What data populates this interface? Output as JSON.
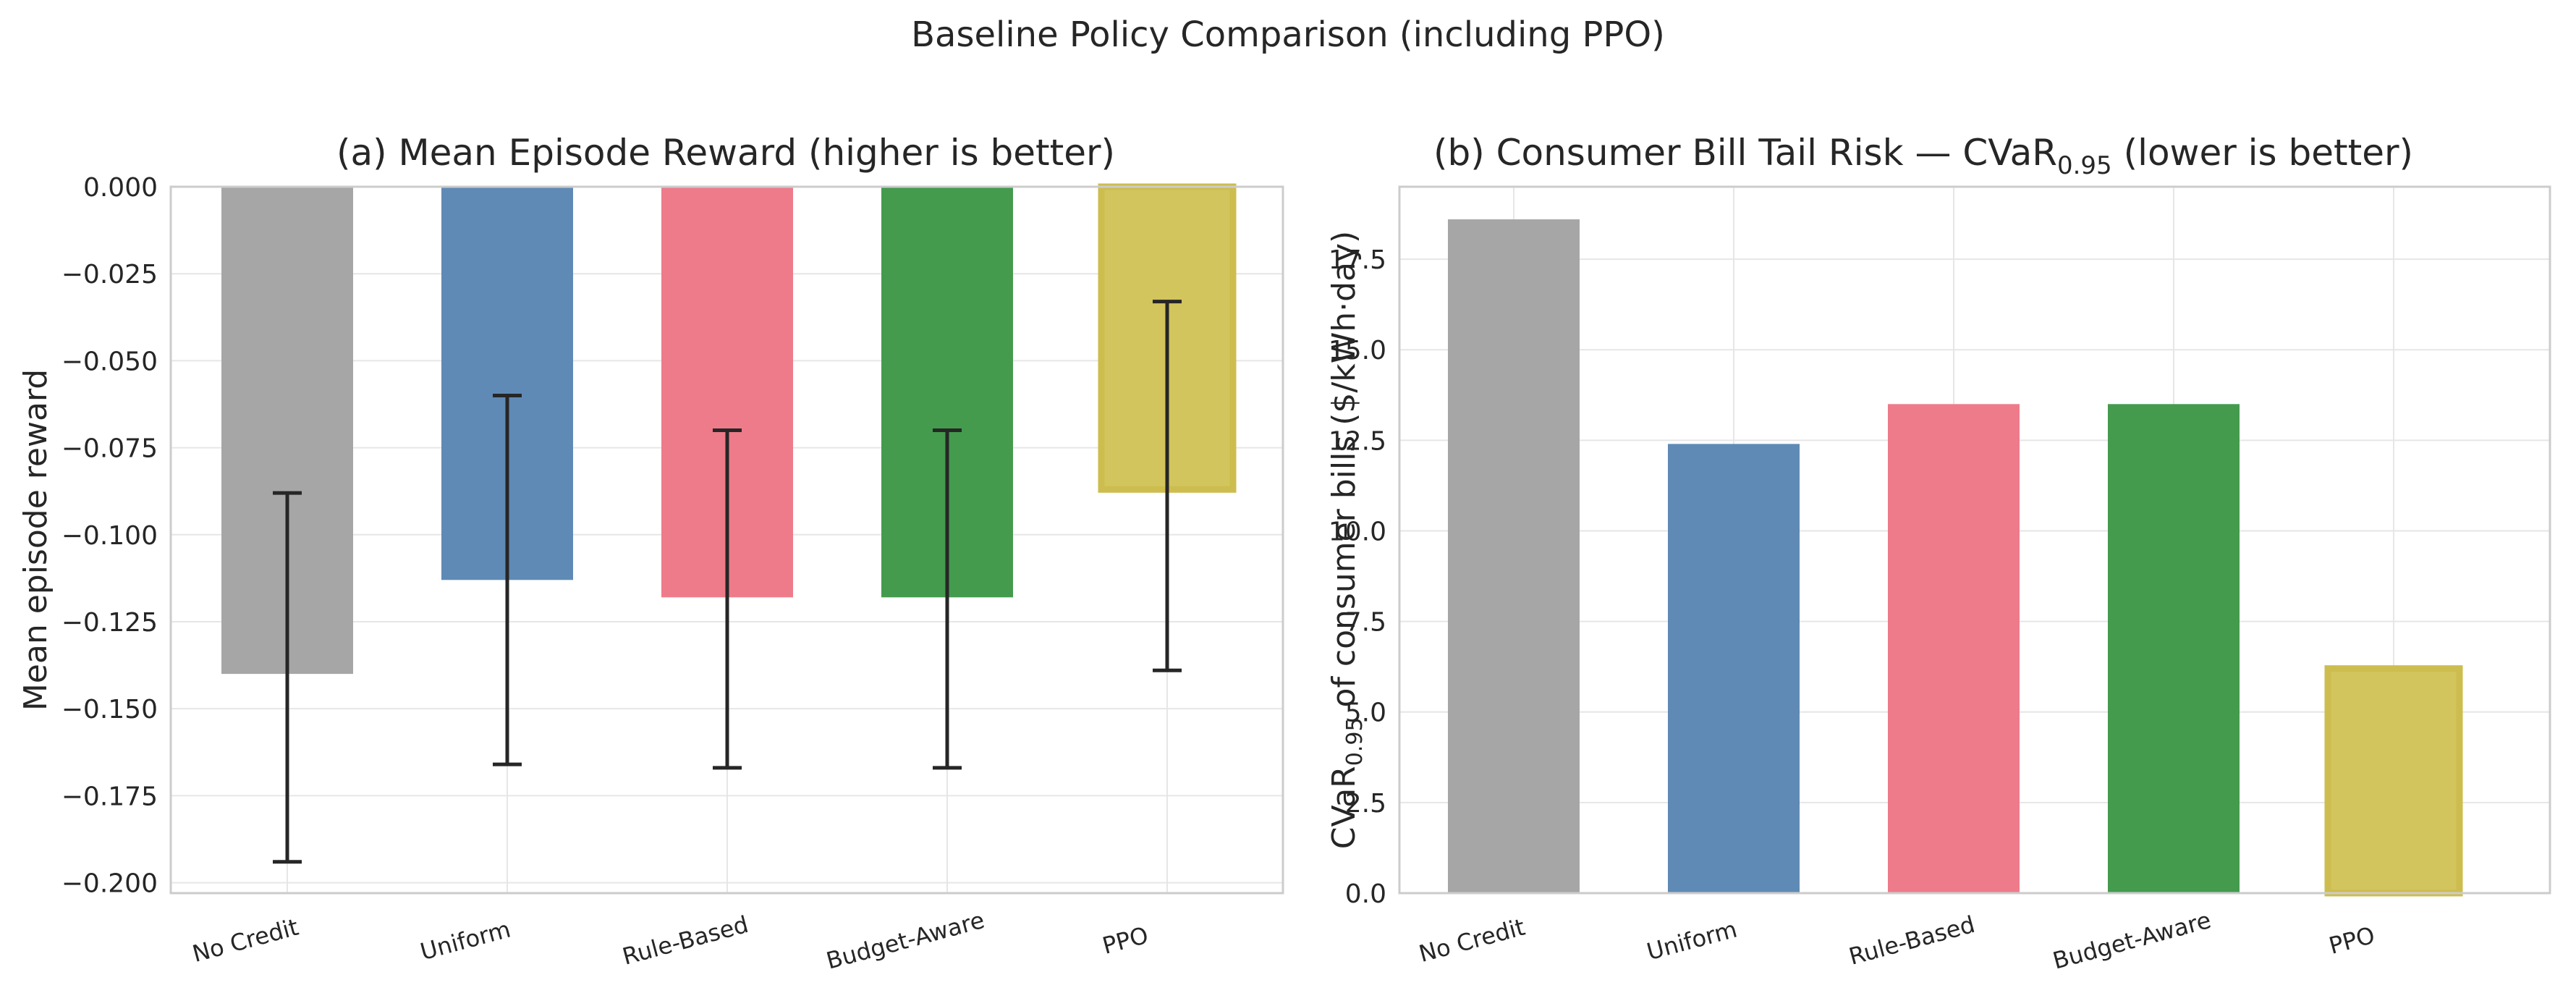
{
  "suptitle": "Baseline Policy Comparison (including PPO)",
  "chart_data": [
    {
      "type": "bar",
      "title": "(a) Mean Episode Reward (higher is better)",
      "xlabel": "",
      "ylabel": "Mean episode reward",
      "categories": [
        "No Credit",
        "Uniform",
        "Rule-Based",
        "Budget-Aware",
        "PPO"
      ],
      "values": [
        -0.14,
        -0.113,
        -0.118,
        -0.118,
        -0.087
      ],
      "error_low": [
        -0.194,
        -0.166,
        -0.167,
        -0.167,
        -0.139
      ],
      "error_high": [
        -0.088,
        -0.06,
        -0.07,
        -0.07,
        -0.033
      ],
      "colors": [
        "#a6a6a6",
        "#5f8ab5",
        "#ee7b8a",
        "#449b4e",
        "#d2c55d"
      ],
      "highlight_index": 4,
      "highlight_edge": "#cdbd4f",
      "ylim": [
        -0.203,
        0.0
      ],
      "yticks": [
        0.0,
        -0.025,
        -0.05,
        -0.075,
        -0.1,
        -0.125,
        -0.15,
        -0.175,
        -0.2
      ],
      "ytick_labels": [
        "0.000",
        "−0.025",
        "−0.050",
        "−0.075",
        "−0.100",
        "−0.125",
        "−0.150",
        "−0.175",
        "−0.200"
      ],
      "grid": true
    },
    {
      "type": "bar",
      "title": "(b) Consumer Bill Tail Risk — CVaR",
      "title_sub": "0.95",
      "title_suffix": " (lower is better)",
      "xlabel": "",
      "ylabel": "CVaR",
      "ylabel_sub": "0.95",
      "ylabel_suffix": " of consumer bills ($/kWh·day)",
      "categories": [
        "No Credit",
        "Uniform",
        "Rule-Based",
        "Budget-Aware",
        "PPO"
      ],
      "values": [
        18.6,
        12.4,
        13.5,
        13.5,
        6.2
      ],
      "colors": [
        "#a6a6a6",
        "#5f8ab5",
        "#ee7b8a",
        "#449b4e",
        "#d2c55d"
      ],
      "highlight_index": 4,
      "highlight_edge": "#cdbd4f",
      "ylim": [
        0.0,
        19.5
      ],
      "yticks": [
        0.0,
        2.5,
        5.0,
        7.5,
        10.0,
        12.5,
        15.0,
        17.5
      ],
      "ytick_labels": [
        "0.0",
        "2.5",
        "5.0",
        "7.5",
        "10.0",
        "12.5",
        "15.0",
        "17.5"
      ],
      "grid": true
    }
  ]
}
